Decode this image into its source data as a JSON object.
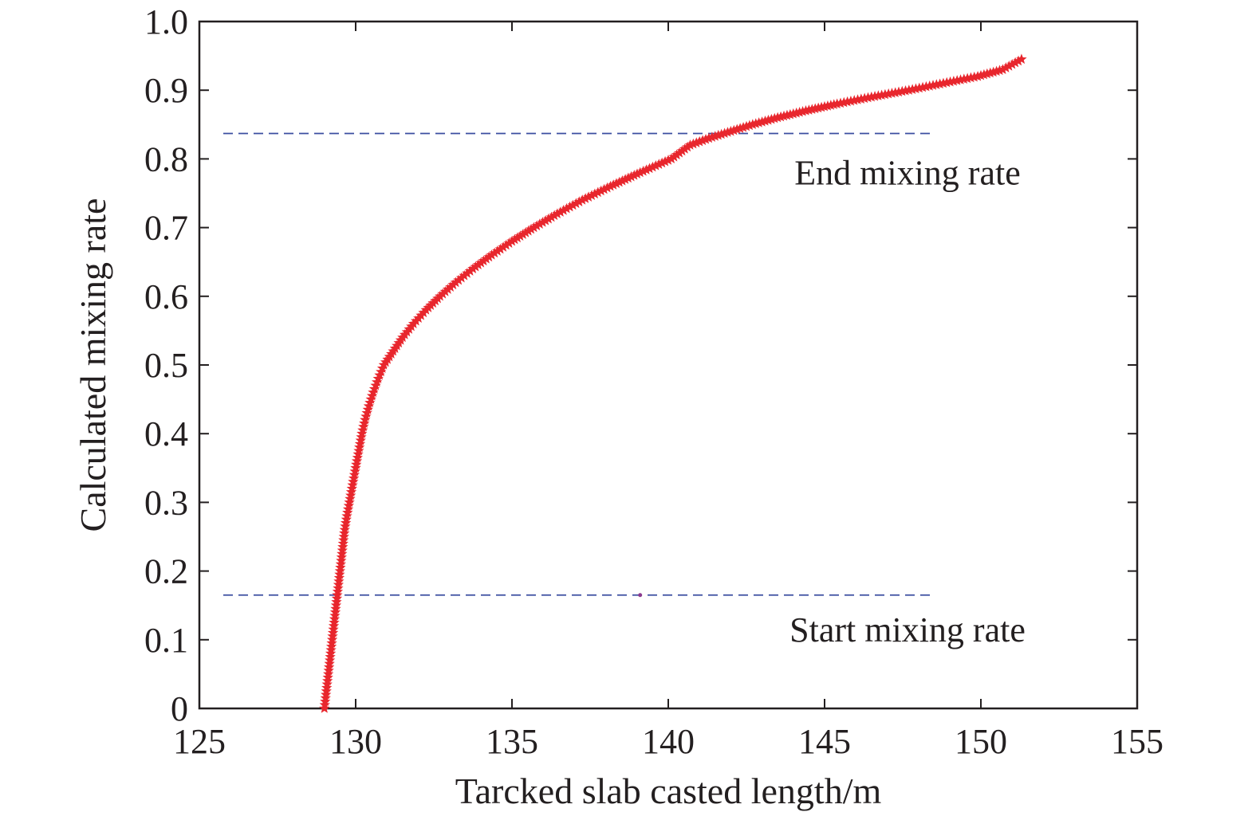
{
  "chart_data": {
    "type": "scatter",
    "title": "",
    "xlabel": "Tarcked slab casted length/m",
    "ylabel": "Calculated mixing rate",
    "xlim": [
      125,
      155
    ],
    "ylim": [
      0,
      1.0
    ],
    "x_ticks": [
      "125",
      "130",
      "135",
      "140",
      "145",
      "150",
      "155"
    ],
    "y_ticks": [
      "0",
      "0.1",
      "0.2",
      "0.3",
      "0.4",
      "0.5",
      "0.6",
      "0.7",
      "0.8",
      "0.9",
      "1.0"
    ],
    "grid": false,
    "marker": "star",
    "series": [
      {
        "name": "",
        "color": "#e8262d",
        "points": [
          [
            129.0,
            0.0
          ],
          [
            129.05,
            0.02
          ],
          [
            129.1,
            0.04
          ],
          [
            129.15,
            0.06
          ],
          [
            129.2,
            0.08
          ],
          [
            129.25,
            0.1
          ],
          [
            129.3,
            0.12
          ],
          [
            129.35,
            0.14
          ],
          [
            129.4,
            0.16
          ],
          [
            129.45,
            0.18
          ],
          [
            129.5,
            0.2
          ],
          [
            129.55,
            0.22
          ],
          [
            129.6,
            0.24
          ],
          [
            129.65,
            0.26
          ],
          [
            129.72,
            0.28
          ],
          [
            129.8,
            0.3
          ],
          [
            129.88,
            0.32
          ],
          [
            129.96,
            0.34
          ],
          [
            130.04,
            0.36
          ],
          [
            130.12,
            0.38
          ],
          [
            130.2,
            0.4
          ],
          [
            130.3,
            0.42
          ],
          [
            130.42,
            0.44
          ],
          [
            130.56,
            0.46
          ],
          [
            130.72,
            0.48
          ],
          [
            130.9,
            0.5
          ],
          [
            131.2,
            0.52
          ],
          [
            131.5,
            0.54
          ],
          [
            131.85,
            0.56
          ],
          [
            132.25,
            0.58
          ],
          [
            132.7,
            0.6
          ],
          [
            133.2,
            0.62
          ],
          [
            133.75,
            0.64
          ],
          [
            134.35,
            0.66
          ],
          [
            135.0,
            0.68
          ],
          [
            135.7,
            0.7
          ],
          [
            136.45,
            0.72
          ],
          [
            137.25,
            0.74
          ],
          [
            138.15,
            0.76
          ],
          [
            139.1,
            0.78
          ],
          [
            140.1,
            0.8
          ],
          [
            140.7,
            0.82
          ],
          [
            141.3,
            0.83
          ],
          [
            142.0,
            0.84
          ],
          [
            142.7,
            0.85
          ],
          [
            143.5,
            0.86
          ],
          [
            144.4,
            0.87
          ],
          [
            145.4,
            0.88
          ],
          [
            146.5,
            0.89
          ],
          [
            147.7,
            0.9
          ],
          [
            148.8,
            0.91
          ],
          [
            149.9,
            0.92
          ],
          [
            150.7,
            0.93
          ],
          [
            151.3,
            0.945
          ]
        ]
      }
    ],
    "reference_lines": [
      {
        "y": 0.837,
        "x_start": 125,
        "x_end": 148.4,
        "style": "dashed",
        "color": "#3b4ea0",
        "label": "End mixing rate"
      },
      {
        "y": 0.165,
        "x_start": 125,
        "x_end": 148.4,
        "style": "dashed",
        "color": "#3b4ea0",
        "label": "Start mixing rate"
      }
    ],
    "extra_point": {
      "x": 139.1,
      "y": 0.165,
      "color": "#8b3a8f"
    }
  }
}
